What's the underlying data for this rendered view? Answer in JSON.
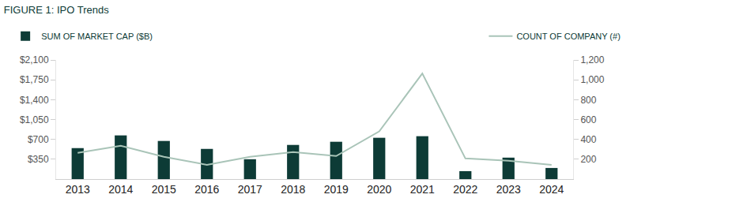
{
  "chart_data": {
    "type": "bar",
    "title": "FIGURE 1: IPO Trends",
    "categories": [
      "2013",
      "2014",
      "2015",
      "2016",
      "2017",
      "2018",
      "2019",
      "2020",
      "2021",
      "2022",
      "2023",
      "2024"
    ],
    "series": [
      {
        "name": "SUM OF MARKET CAP ($B)",
        "type": "bar",
        "color": "#0d3b36",
        "values": [
          546,
          770,
          672,
          532,
          350,
          602,
          658,
          728,
          756,
          140,
          378,
          196
        ]
      },
      {
        "name": "COUNT OF COMPANY (#)",
        "type": "line",
        "color": "#a9c4b8",
        "axis": "y2",
        "values": [
          264,
          336,
          224,
          144,
          224,
          272,
          232,
          480,
          1064,
          208,
          184,
          144
        ]
      }
    ],
    "ylim": [
      0,
      2100
    ],
    "yticks": [
      {
        "value": 350,
        "label": "$350"
      },
      {
        "value": 700,
        "label": "$700"
      },
      {
        "value": 1050,
        "label": "$1,050"
      },
      {
        "value": 1400,
        "label": "$1,400"
      },
      {
        "value": 1750,
        "label": "$1,750"
      },
      {
        "value": 2100,
        "label": "$2,100"
      }
    ],
    "y2lim": [
      0,
      1200
    ],
    "y2ticks": [
      200,
      400,
      600,
      800,
      {
        "value": 1000,
        "label": "1,000"
      },
      {
        "value": 1200,
        "label": "1,200"
      }
    ],
    "grid": false,
    "legend": "top"
  }
}
